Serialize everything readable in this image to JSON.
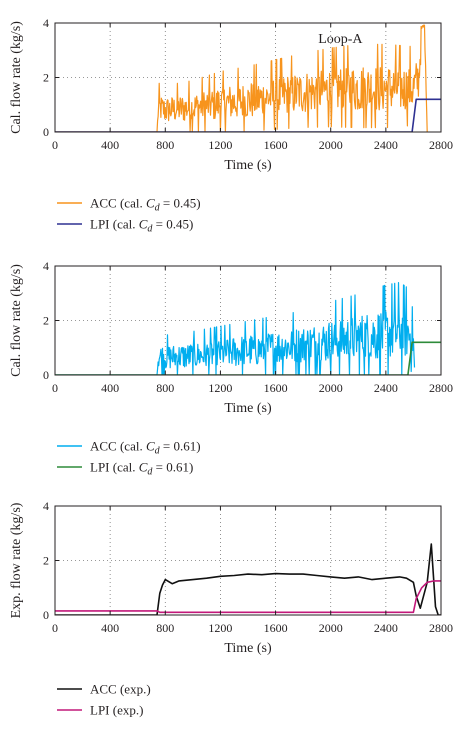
{
  "chart_data": [
    {
      "type": "line",
      "xlabel": "Time (s)",
      "ylabel": "Cal. flow rate (kg/s)",
      "xlim": [
        0,
        2800
      ],
      "ylim": [
        0,
        4
      ],
      "xticks": [
        "0",
        "400",
        "800",
        "1200",
        "1600",
        "2000",
        "2400",
        "2800"
      ],
      "yticks": [
        "0",
        "2",
        "4"
      ],
      "grid": true,
      "annotation": "Loop-A",
      "legend_position": "below",
      "series": [
        {
          "name": "ACC (cal. C_d = 0.45)",
          "legend": {
            "pre": "ACC (cal. ",
            "sym": "C",
            "sub": "d",
            "post": " = 0.45)"
          },
          "color": "#f7941d",
          "style": "noisy",
          "x": [
            0,
            740,
            750,
            800,
            1000,
            1200,
            1400,
            1600,
            1800,
            2000,
            2200,
            2400,
            2600,
            2640,
            2660,
            2680,
            2700
          ],
          "y": [
            0,
            0,
            0.9,
            0.8,
            0.9,
            1.05,
            1.15,
            1.3,
            1.45,
            1.55,
            1.6,
            1.6,
            1.6,
            2.0,
            3.8,
            3.9,
            0
          ],
          "spread": [
            0,
            0,
            0.5,
            0.5,
            0.55,
            0.65,
            0.7,
            0.75,
            0.8,
            0.85,
            0.9,
            0.9,
            0.85,
            0.8,
            0.1,
            0.1,
            0
          ]
        },
        {
          "name": "LPI (cal. C_d = 0.45)",
          "legend": {
            "pre": "LPI (cal. ",
            "sym": "C",
            "sub": "d",
            "post": " = 0.45)"
          },
          "color": "#2e3192",
          "style": "line",
          "x": [
            0,
            2590,
            2620,
            2800
          ],
          "y": [
            0,
            0,
            1.2,
            1.2
          ]
        }
      ]
    },
    {
      "type": "line",
      "xlabel": "Time (s)",
      "ylabel": "Cal. flow rate (kg/s)",
      "xlim": [
        0,
        2800
      ],
      "ylim": [
        0,
        4
      ],
      "xticks": [
        "0",
        "400",
        "800",
        "1200",
        "1600",
        "2000",
        "2400",
        "2800"
      ],
      "yticks": [
        "0",
        "2",
        "4"
      ],
      "grid": true,
      "legend_position": "below",
      "series": [
        {
          "name": "ACC (cal. C_d = 0.61)",
          "legend": {
            "pre": "ACC (cal. ",
            "sym": "C",
            "sub": "d",
            "post": " = 0.61)"
          },
          "color": "#00aeef",
          "style": "noisy",
          "x": [
            0,
            740,
            750,
            800,
            1000,
            1200,
            1400,
            1600,
            1800,
            2000,
            2200,
            2400,
            2500,
            2580,
            2600,
            2610
          ],
          "y": [
            0,
            0,
            0.7,
            0.65,
            0.7,
            0.8,
            0.9,
            1.0,
            1.1,
            1.25,
            1.35,
            1.5,
            1.6,
            1.5,
            1.2,
            0
          ],
          "spread": [
            0,
            0,
            0.45,
            0.45,
            0.5,
            0.55,
            0.6,
            0.65,
            0.7,
            0.8,
            0.9,
            1.0,
            1.0,
            0.9,
            0.5,
            0
          ]
        },
        {
          "name": "LPI (cal. C_d = 0.61)",
          "legend": {
            "pre": "LPI (cal. ",
            "sym": "C",
            "sub": "d",
            "post": " = 0.61)"
          },
          "color": "#2e8b3a",
          "style": "line",
          "x": [
            0,
            2560,
            2590,
            2800
          ],
          "y": [
            0,
            0,
            1.2,
            1.2
          ]
        }
      ]
    },
    {
      "type": "line",
      "xlabel": "Time (s)",
      "ylabel": "Exp. flow rate (kg/s)",
      "xlim": [
        0,
        2800
      ],
      "ylim": [
        0,
        4
      ],
      "xticks": [
        "0",
        "400",
        "800",
        "1200",
        "1600",
        "2000",
        "2400",
        "2800"
      ],
      "yticks": [
        "0",
        "2",
        "4"
      ],
      "grid": true,
      "legend_position": "below",
      "series": [
        {
          "name": "ACC (exp.)",
          "legend": {
            "pre": "ACC (exp.)",
            "sym": "",
            "sub": "",
            "post": ""
          },
          "color": "#111111",
          "style": "line",
          "x": [
            0,
            740,
            760,
            780,
            800,
            850,
            900,
            1000,
            1100,
            1200,
            1300,
            1400,
            1500,
            1600,
            1700,
            1800,
            1900,
            2000,
            2100,
            2200,
            2300,
            2400,
            2500,
            2550,
            2600,
            2620,
            2650,
            2700,
            2730,
            2760,
            2780,
            2800
          ],
          "y": [
            0,
            0,
            0.8,
            1.1,
            1.3,
            1.15,
            1.25,
            1.3,
            1.35,
            1.42,
            1.45,
            1.5,
            1.48,
            1.52,
            1.5,
            1.5,
            1.45,
            1.4,
            1.35,
            1.4,
            1.3,
            1.35,
            1.4,
            1.35,
            1.2,
            0.7,
            0.25,
            1.2,
            2.6,
            0.3,
            0,
            0
          ]
        },
        {
          "name": "LPI (exp.)",
          "legend": {
            "pre": "LPI (exp.)",
            "sym": "",
            "sub": "",
            "post": ""
          },
          "color": "#c2187a",
          "style": "line",
          "x": [
            0,
            740,
            760,
            800,
            2500,
            2600,
            2620,
            2660,
            2700,
            2750,
            2800
          ],
          "y": [
            0.15,
            0.15,
            0.1,
            0.1,
            0.1,
            0.1,
            0.6,
            1.0,
            1.2,
            1.25,
            1.25
          ]
        }
      ]
    }
  ]
}
